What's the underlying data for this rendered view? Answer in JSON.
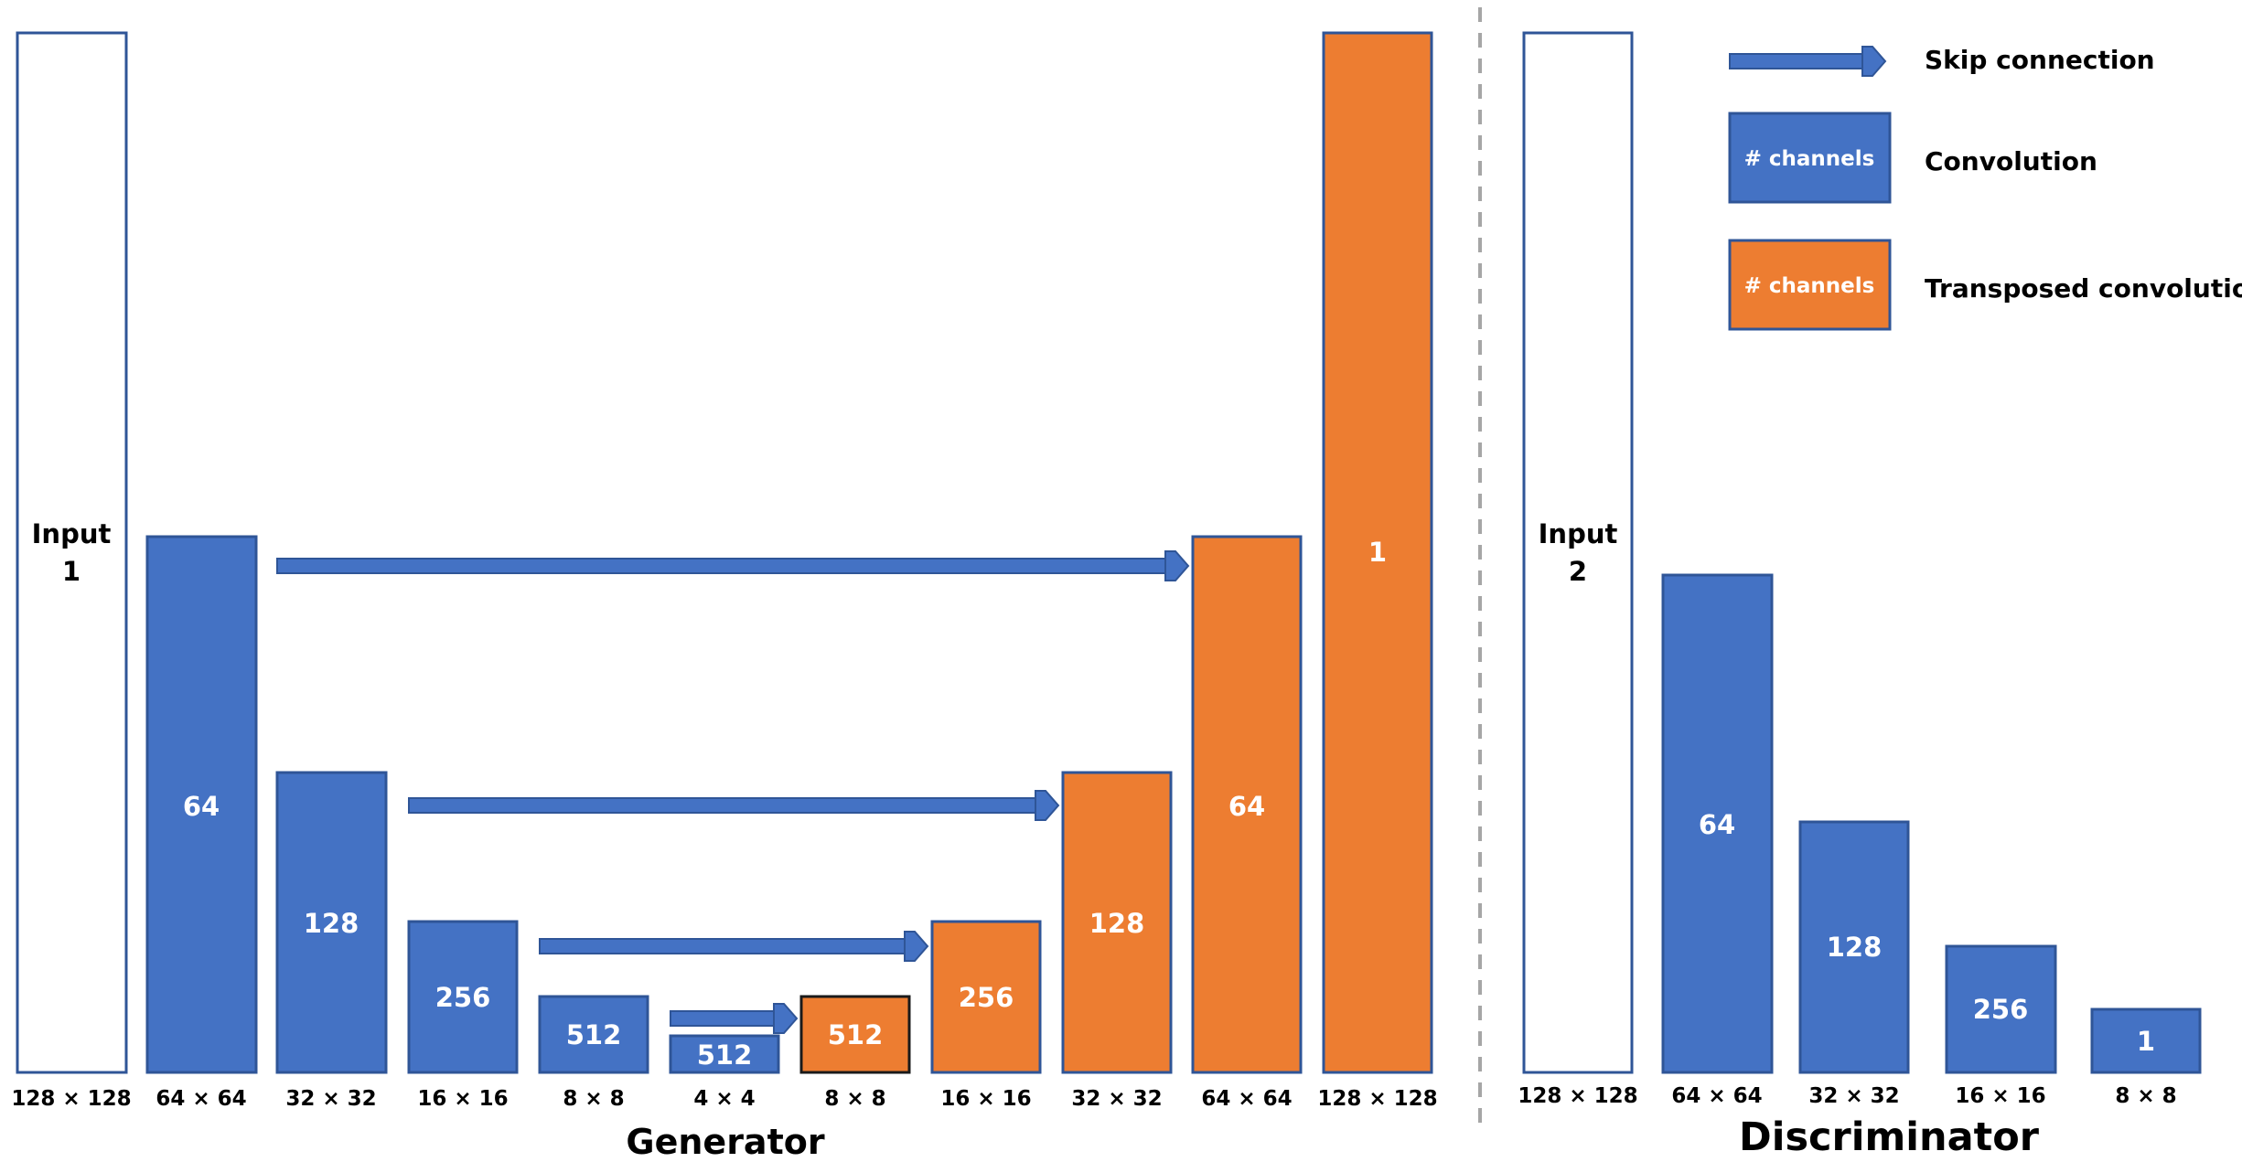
{
  "colors": {
    "convolution": "#4472C4",
    "transposed": "#ED7D31",
    "border": "#2F5597",
    "input_border": "#2F5597",
    "divider": "#A6A6A6"
  },
  "generator": {
    "title": "Generator",
    "input": {
      "line1": "Input",
      "line2": "1",
      "resolution": "128 × 128"
    },
    "blocks": [
      {
        "type": "conv",
        "channels": "64",
        "resolution": "64 × 64"
      },
      {
        "type": "conv",
        "channels": "128",
        "resolution": "32 × 32"
      },
      {
        "type": "conv",
        "channels": "256",
        "resolution": "16 × 16"
      },
      {
        "type": "conv",
        "channels": "512",
        "resolution": "8 × 8"
      },
      {
        "type": "conv",
        "channels": "512",
        "resolution": "4 × 4"
      },
      {
        "type": "tconv",
        "channels": "512",
        "resolution": "8 × 8"
      },
      {
        "type": "tconv",
        "channels": "256",
        "resolution": "16 × 16"
      },
      {
        "type": "tconv",
        "channels": "128",
        "resolution": "32 × 32"
      },
      {
        "type": "tconv",
        "channels": "64",
        "resolution": "64 × 64"
      },
      {
        "type": "tconv",
        "channels": "1",
        "resolution": "128 × 128"
      }
    ],
    "skip_connections": [
      {
        "from": "64 × 64",
        "to": "64 × 64"
      },
      {
        "from": "32 × 32",
        "to": "32 × 32"
      },
      {
        "from": "16 × 16",
        "to": "16 × 16"
      },
      {
        "from": "8 × 8",
        "to": "8 × 8"
      }
    ]
  },
  "discriminator": {
    "title": "Discriminator",
    "input": {
      "line1": "Input",
      "line2": "2",
      "resolution": "128 × 128"
    },
    "blocks": [
      {
        "type": "conv",
        "channels": "64",
        "resolution": "64 × 64"
      },
      {
        "type": "conv",
        "channels": "128",
        "resolution": "32 × 32"
      },
      {
        "type": "conv",
        "channels": "256",
        "resolution": "16 × 16"
      },
      {
        "type": "conv",
        "channels": "1",
        "resolution": "8 × 8"
      }
    ]
  },
  "legend": {
    "skip": {
      "label": "Skip connection"
    },
    "conv": {
      "box_text": "# channels",
      "label": "Convolution"
    },
    "tconv": {
      "box_text": "# channels",
      "label": "Transposed convolution"
    }
  }
}
